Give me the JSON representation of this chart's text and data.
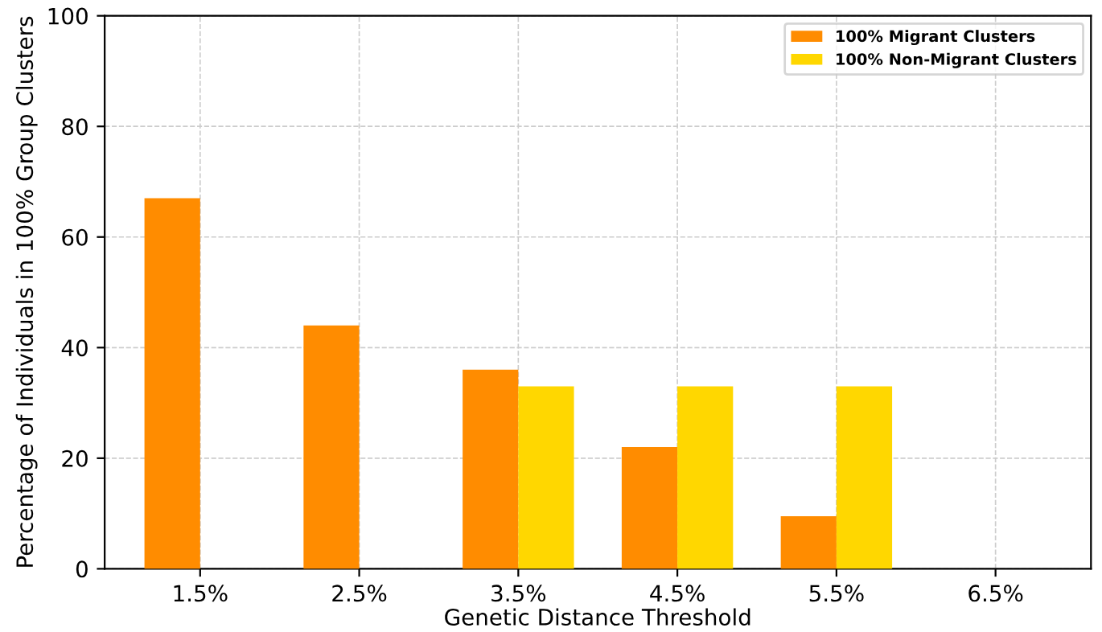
{
  "chart_data": {
    "type": "bar",
    "xlabel": "Genetic Distance Threshold",
    "ylabel": "Percentage of Individuals in 100% Group Clusters",
    "categories": [
      "1.5%",
      "2.5%",
      "3.5%",
      "4.5%",
      "5.5%",
      "6.5%"
    ],
    "series": [
      {
        "name": "100% Migrant Clusters",
        "color": "#ff8c00",
        "values": [
          67,
          44,
          36,
          22,
          9.5,
          0
        ]
      },
      {
        "name": "100% Non-Migrant Clusters",
        "color": "#ffd700",
        "values": [
          0,
          0,
          33,
          33,
          33,
          0
        ]
      }
    ],
    "ylim": [
      0,
      100
    ],
    "yticks": [
      0,
      20,
      40,
      60,
      80,
      100
    ],
    "grid": true,
    "legend": "top right"
  }
}
